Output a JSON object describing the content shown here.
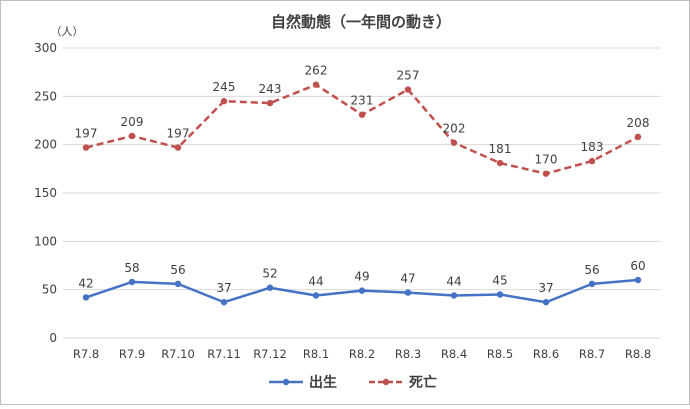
{
  "chart_data": {
    "type": "line",
    "title": "自然動態（一年間の動き）",
    "ylabel": "（人）",
    "xlabel": "",
    "categories": [
      "R7.8",
      "R7.9",
      "R7.10",
      "R7.11",
      "R7.12",
      "R8.1",
      "R8.2",
      "R8.3",
      "R8.4",
      "R8.5",
      "R8.6",
      "R8.7",
      "R8.8"
    ],
    "ylim": [
      0,
      300
    ],
    "yticks": [
      0,
      50,
      100,
      150,
      200,
      250,
      300
    ],
    "grid": true,
    "legend_position": "bottom",
    "series": [
      {
        "name": "出生",
        "color": "#4472c4",
        "dash": "solid",
        "values": [
          42,
          58,
          56,
          37,
          52,
          44,
          49,
          47,
          44,
          45,
          37,
          56,
          60
        ]
      },
      {
        "name": "死亡",
        "color": "#c0504d",
        "dash": "dashed",
        "values": [
          197,
          209,
          197,
          245,
          243,
          262,
          231,
          257,
          202,
          181,
          170,
          183,
          208
        ]
      }
    ]
  }
}
